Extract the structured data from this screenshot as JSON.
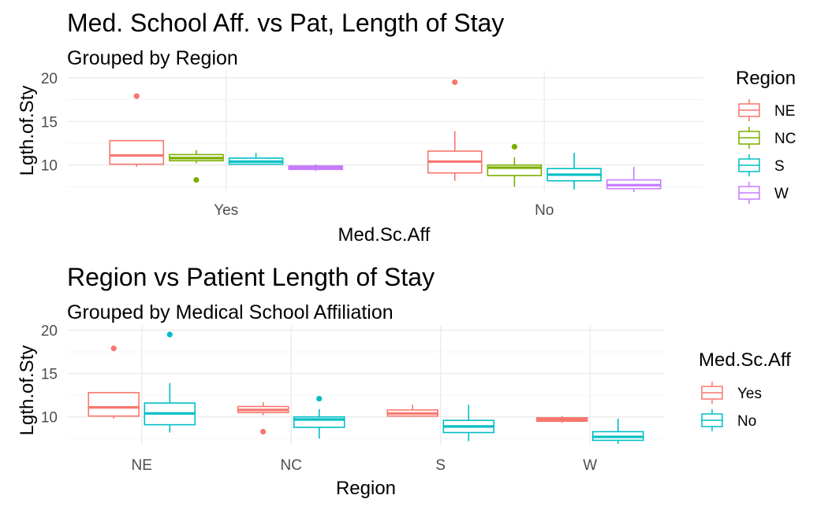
{
  "chart_data": [
    {
      "type": "box",
      "title": "Med. School Aff. vs Pat, Length of Stay",
      "subtitle": "Grouped by Region",
      "xlabel": "Med.Sc.Aff",
      "ylabel": "Lgth.of.Sty",
      "categories": [
        "Yes",
        "No"
      ],
      "ylim": [
        7.0,
        20.8
      ],
      "yticks": [
        10,
        15,
        20
      ],
      "legend": {
        "title": "Region",
        "position": "right"
      },
      "series": [
        {
          "name": "NE",
          "color": "#F8766D",
          "boxes": [
            {
              "min": 9.8,
              "q1": 10.1,
              "median": 11.1,
              "q3": 12.8,
              "max": 12.8,
              "outliers": [
                17.9
              ]
            },
            {
              "min": 8.2,
              "q1": 9.1,
              "median": 10.4,
              "q3": 11.6,
              "max": 13.9,
              "outliers": [
                19.5
              ]
            }
          ]
        },
        {
          "name": "NC",
          "color": "#7CAE00",
          "boxes": [
            {
              "min": 10.2,
              "q1": 10.5,
              "median": 10.8,
              "q3": 11.2,
              "max": 11.7,
              "outliers": [
                8.3
              ]
            },
            {
              "min": 7.5,
              "q1": 8.8,
              "median": 9.7,
              "q3": 10.0,
              "max": 10.9,
              "outliers": [
                12.1
              ]
            }
          ]
        },
        {
          "name": "S",
          "color": "#00BFC4",
          "boxes": [
            {
              "min": 10.0,
              "q1": 10.1,
              "median": 10.4,
              "q3": 10.8,
              "max": 11.4,
              "outliers": []
            },
            {
              "min": 7.2,
              "q1": 8.2,
              "median": 8.9,
              "q3": 9.6,
              "max": 11.4,
              "outliers": []
            }
          ]
        },
        {
          "name": "W",
          "color": "#C77CFF",
          "boxes": [
            {
              "min": 9.3,
              "q1": 9.5,
              "median": 9.7,
              "q3": 9.9,
              "max": 10.1,
              "outliers": []
            },
            {
              "min": 6.9,
              "q1": 7.3,
              "median": 7.7,
              "q3": 8.3,
              "max": 9.8,
              "outliers": []
            }
          ]
        }
      ]
    },
    {
      "type": "box",
      "title": "Region vs Patient Length of Stay",
      "subtitle": "Grouped by Medical School Affiliation",
      "xlabel": "Region",
      "ylabel": "Lgth.of.Sty",
      "categories": [
        "NE",
        "NC",
        "S",
        "W"
      ],
      "ylim": [
        6.8,
        20.5
      ],
      "yticks": [
        10,
        15,
        20
      ],
      "legend": {
        "title": "Med.Sc.Aff",
        "position": "right"
      },
      "series": [
        {
          "name": "Yes",
          "color": "#F8766D",
          "boxes": [
            {
              "min": 9.8,
              "q1": 10.1,
              "median": 11.1,
              "q3": 12.8,
              "max": 12.8,
              "outliers": [
                17.9
              ]
            },
            {
              "min": 10.2,
              "q1": 10.5,
              "median": 10.8,
              "q3": 11.2,
              "max": 11.7,
              "outliers": [
                8.3
              ]
            },
            {
              "min": 10.0,
              "q1": 10.1,
              "median": 10.4,
              "q3": 10.8,
              "max": 11.4,
              "outliers": []
            },
            {
              "min": 9.3,
              "q1": 9.5,
              "median": 9.7,
              "q3": 9.9,
              "max": 10.1,
              "outliers": []
            }
          ]
        },
        {
          "name": "No",
          "color": "#00BFC4",
          "boxes": [
            {
              "min": 8.2,
              "q1": 9.1,
              "median": 10.4,
              "q3": 11.6,
              "max": 13.9,
              "outliers": [
                19.5
              ]
            },
            {
              "min": 7.5,
              "q1": 8.8,
              "median": 9.7,
              "q3": 10.0,
              "max": 10.9,
              "outliers": [
                12.1
              ]
            },
            {
              "min": 7.2,
              "q1": 8.2,
              "median": 8.9,
              "q3": 9.6,
              "max": 11.4,
              "outliers": []
            },
            {
              "min": 6.9,
              "q1": 7.3,
              "median": 7.7,
              "q3": 8.3,
              "max": 9.8,
              "outliers": []
            }
          ]
        }
      ]
    }
  ]
}
